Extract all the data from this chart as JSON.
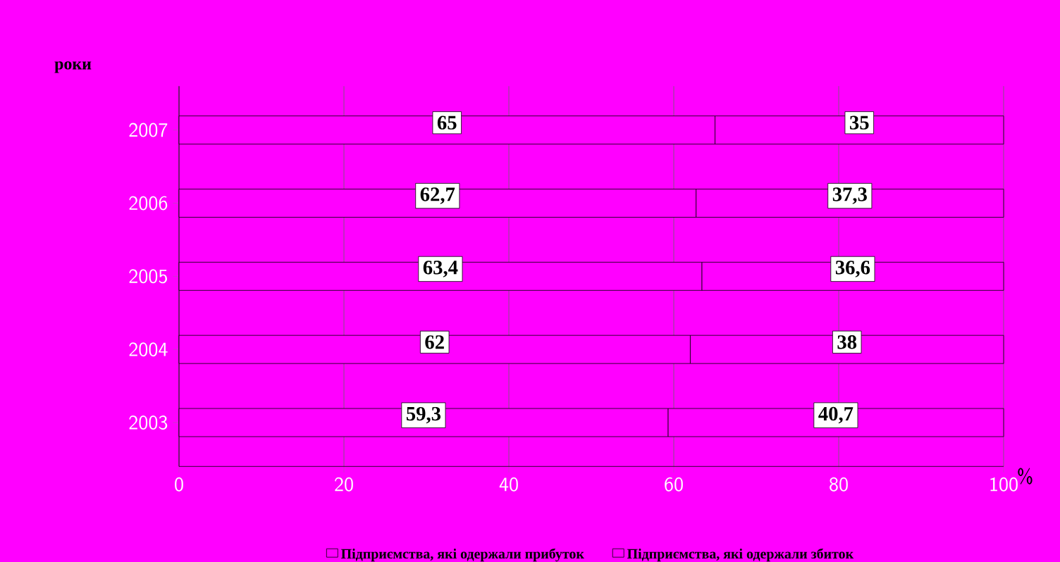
{
  "chart_data": {
    "type": "bar",
    "orientation": "horizontal",
    "stacked": true,
    "ylabel": "роки",
    "xlabel": "%",
    "categories": [
      "2007",
      "2006",
      "2005",
      "2004",
      "2003"
    ],
    "series": [
      {
        "name": "Підприємства, які одержали прибуток",
        "color": "#ff00ff",
        "values": [
          65,
          62.7,
          63.4,
          62,
          59.3
        ],
        "value_labels": [
          "65",
          "62,7",
          "63,4",
          "62",
          "59,3"
        ]
      },
      {
        "name": "Підприємства, які одержали збиток",
        "color": "#ff00ff",
        "values": [
          35,
          37.3,
          36.6,
          38,
          40.7
        ],
        "value_labels": [
          "35",
          "37,3",
          "36,6",
          "38",
          "40,7"
        ]
      }
    ],
    "xlim": [
      0,
      100
    ],
    "xticks": [
      0,
      20,
      40,
      60,
      80,
      100
    ],
    "grid": "x",
    "legend": "bottom"
  }
}
